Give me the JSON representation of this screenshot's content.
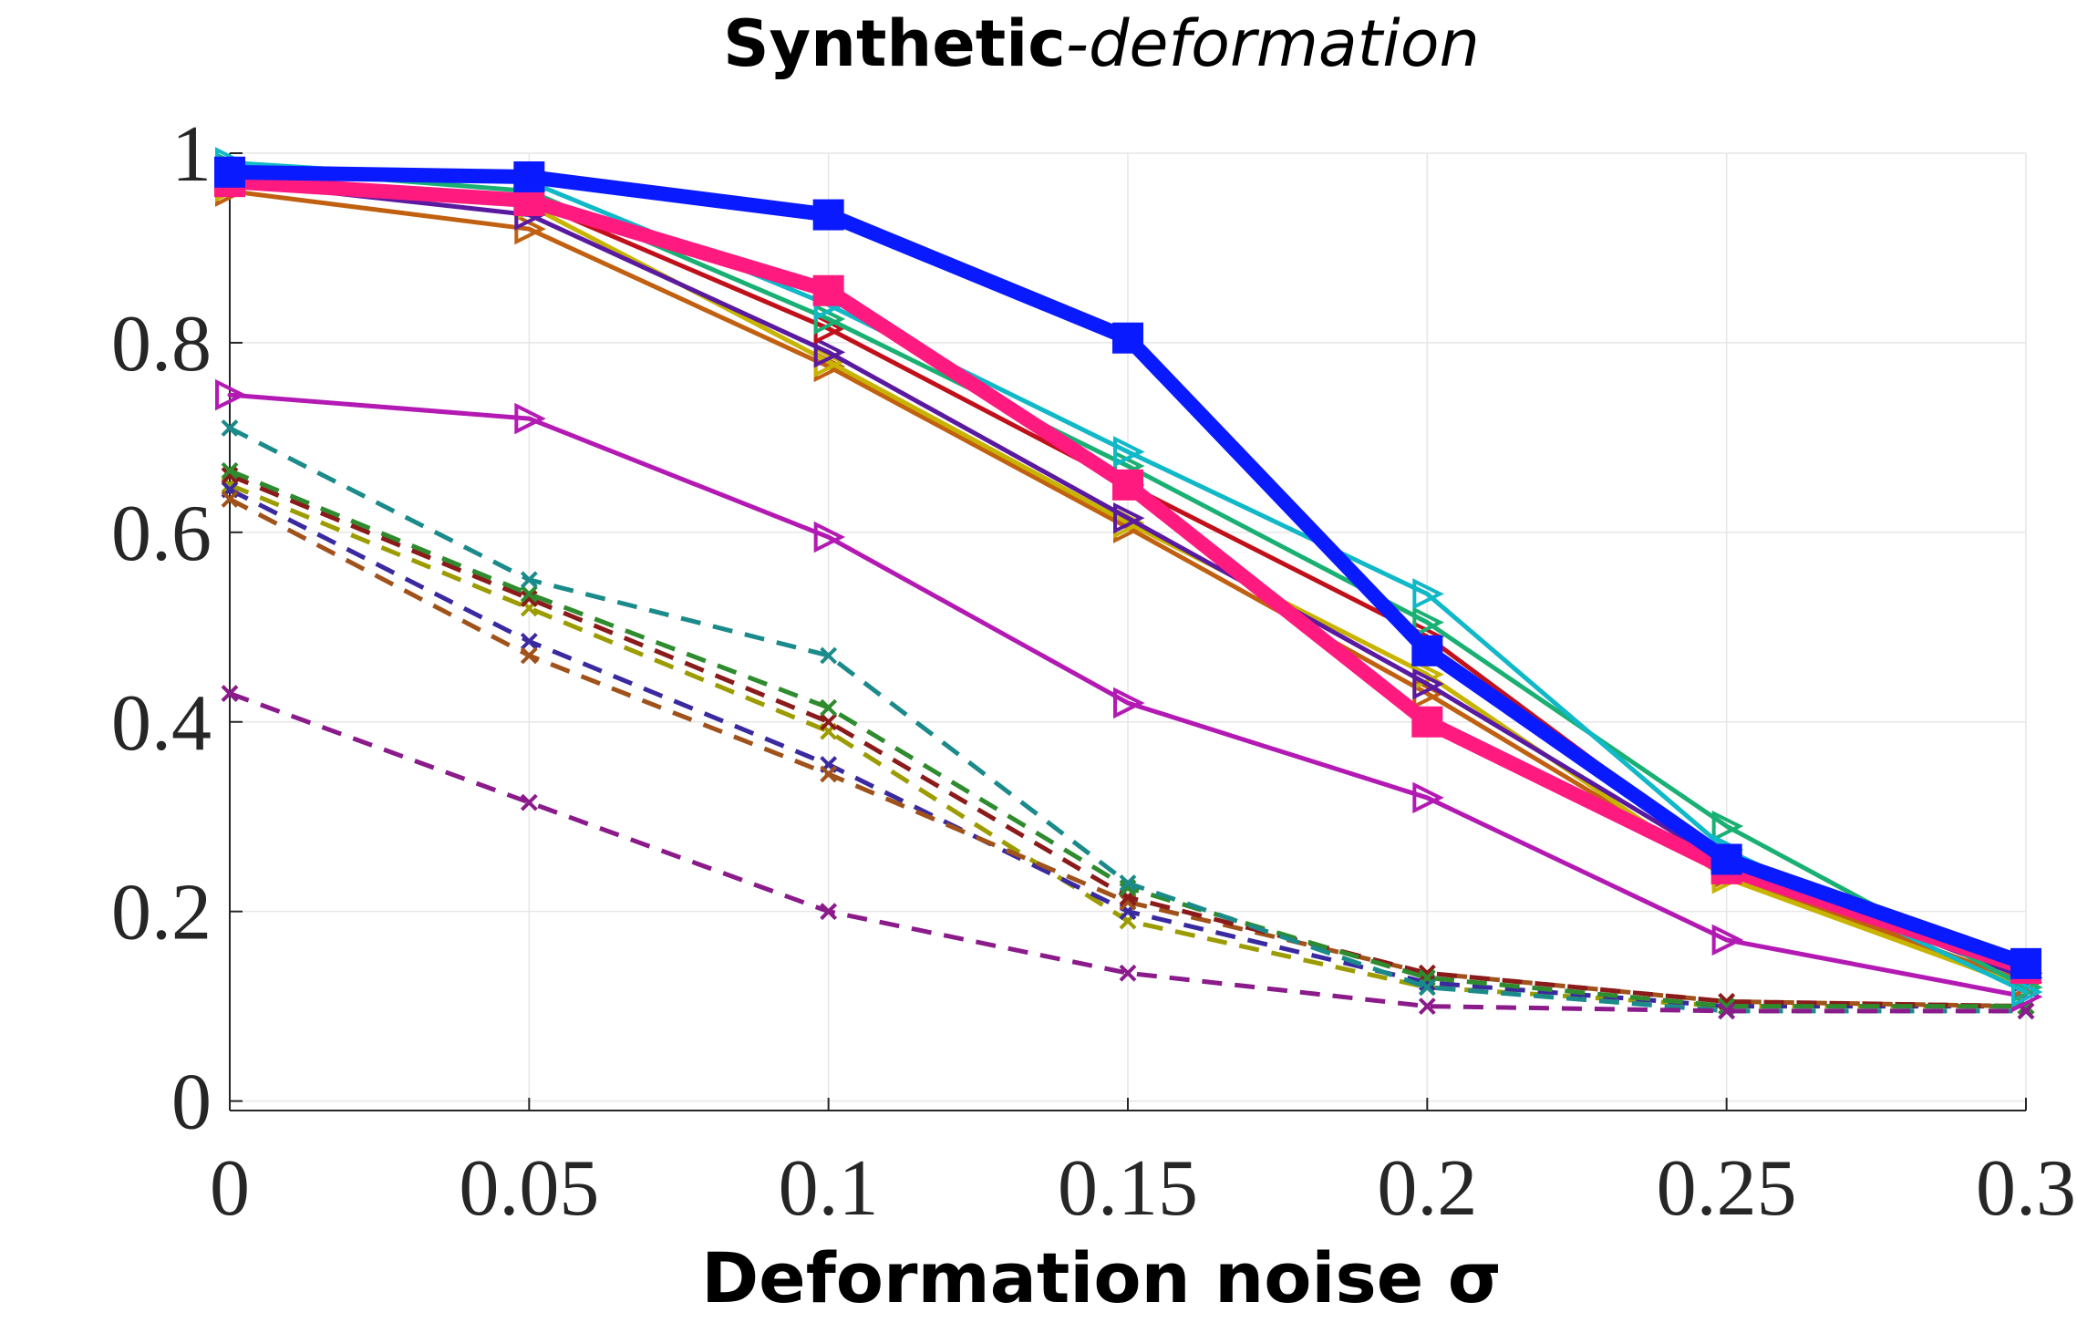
{
  "chart_data": {
    "type": "line",
    "title": {
      "bold": "Synthetic",
      "italic": "-deformation"
    },
    "xlabel": "Deformation noise σ",
    "ylabel": "",
    "xlim": [
      0,
      0.3
    ],
    "ylim": [
      -0.01,
      1.0
    ],
    "grid": true,
    "x": [
      0,
      0.05,
      0.1,
      0.15,
      0.2,
      0.25,
      0.3
    ],
    "x_tick_labels": [
      "0",
      "0.05",
      "0.1",
      "0.15",
      "0.2",
      "0.25",
      "0.3"
    ],
    "y_ticks": [
      0,
      0.2,
      0.4,
      0.6,
      0.8,
      1
    ],
    "y_tick_labels": [
      "0",
      "0.2",
      "0.4",
      "0.6",
      "0.8",
      "1"
    ],
    "series": [
      {
        "name": "dashed-olive",
        "color": "#9c9c00",
        "style": "dashed",
        "marker": "x",
        "values": [
          0.65,
          0.52,
          0.39,
          0.19,
          0.12,
          0.1,
          0.1
        ]
      },
      {
        "name": "dashed-darkblue",
        "color": "#3a2aa0",
        "style": "dashed",
        "marker": "x",
        "values": [
          0.645,
          0.485,
          0.355,
          0.2,
          0.125,
          0.1,
          0.1
        ]
      },
      {
        "name": "dashed-brown",
        "color": "#a0521a",
        "style": "dashed",
        "marker": "x",
        "values": [
          0.635,
          0.47,
          0.345,
          0.21,
          0.135,
          0.105,
          0.1
        ]
      },
      {
        "name": "dashed-maroon",
        "color": "#8b1a1a",
        "style": "dashed",
        "marker": "x",
        "values": [
          0.66,
          0.53,
          0.4,
          0.215,
          0.135,
          0.105,
          0.1
        ]
      },
      {
        "name": "dashed-green",
        "color": "#2e8b2e",
        "style": "dashed",
        "marker": "x",
        "values": [
          0.665,
          0.535,
          0.415,
          0.225,
          0.13,
          0.1,
          0.1
        ]
      },
      {
        "name": "dashed-teal",
        "color": "#1a8a8a",
        "style": "dashed",
        "marker": "x",
        "values": [
          0.71,
          0.55,
          0.47,
          0.23,
          0.12,
          0.095,
          0.095
        ]
      },
      {
        "name": "dashed-purple",
        "color": "#8b1a8b",
        "style": "dashed",
        "marker": "x",
        "values": [
          0.43,
          0.315,
          0.2,
          0.135,
          0.1,
          0.095,
          0.095
        ]
      },
      {
        "name": "magenta-triangle",
        "color": "#b31ab3",
        "style": "solid",
        "marker": "triangle",
        "values": [
          0.745,
          0.72,
          0.595,
          0.42,
          0.32,
          0.17,
          0.11
        ]
      },
      {
        "name": "orange-triangle",
        "color": "#c06010",
        "style": "solid",
        "marker": "triangle",
        "values": [
          0.96,
          0.92,
          0.775,
          0.605,
          0.43,
          0.24,
          0.125
        ]
      },
      {
        "name": "yellow-triangle",
        "color": "#c8b400",
        "style": "solid",
        "marker": "triangle",
        "values": [
          0.965,
          0.945,
          0.78,
          0.61,
          0.45,
          0.235,
          0.12
        ]
      },
      {
        "name": "indigo-triangle",
        "color": "#5a1aa0",
        "style": "solid",
        "marker": "triangle",
        "values": [
          0.97,
          0.935,
          0.79,
          0.615,
          0.44,
          0.25,
          0.13
        ]
      },
      {
        "name": "red-triangle",
        "color": "#c0101a",
        "style": "solid",
        "marker": "triangle",
        "values": [
          0.975,
          0.95,
          0.815,
          0.65,
          0.49,
          0.255,
          0.135
        ]
      },
      {
        "name": "green-triangle",
        "color": "#1ab073",
        "style": "solid",
        "marker": "triangle",
        "values": [
          0.985,
          0.96,
          0.825,
          0.67,
          0.505,
          0.29,
          0.12
        ]
      },
      {
        "name": "cyan-triangle",
        "color": "#10b8c8",
        "style": "solid",
        "marker": "triangle",
        "values": [
          0.99,
          0.97,
          0.84,
          0.685,
          0.535,
          0.265,
          0.115
        ]
      },
      {
        "name": "pink-square",
        "color": "#ff1a80",
        "style": "solid-thick",
        "marker": "square",
        "values": [
          0.97,
          0.95,
          0.855,
          0.65,
          0.4,
          0.245,
          0.14
        ]
      },
      {
        "name": "blue-square",
        "color": "#0a1aff",
        "style": "solid-thick",
        "marker": "square",
        "values": [
          0.98,
          0.975,
          0.935,
          0.805,
          0.475,
          0.255,
          0.145
        ]
      }
    ]
  }
}
